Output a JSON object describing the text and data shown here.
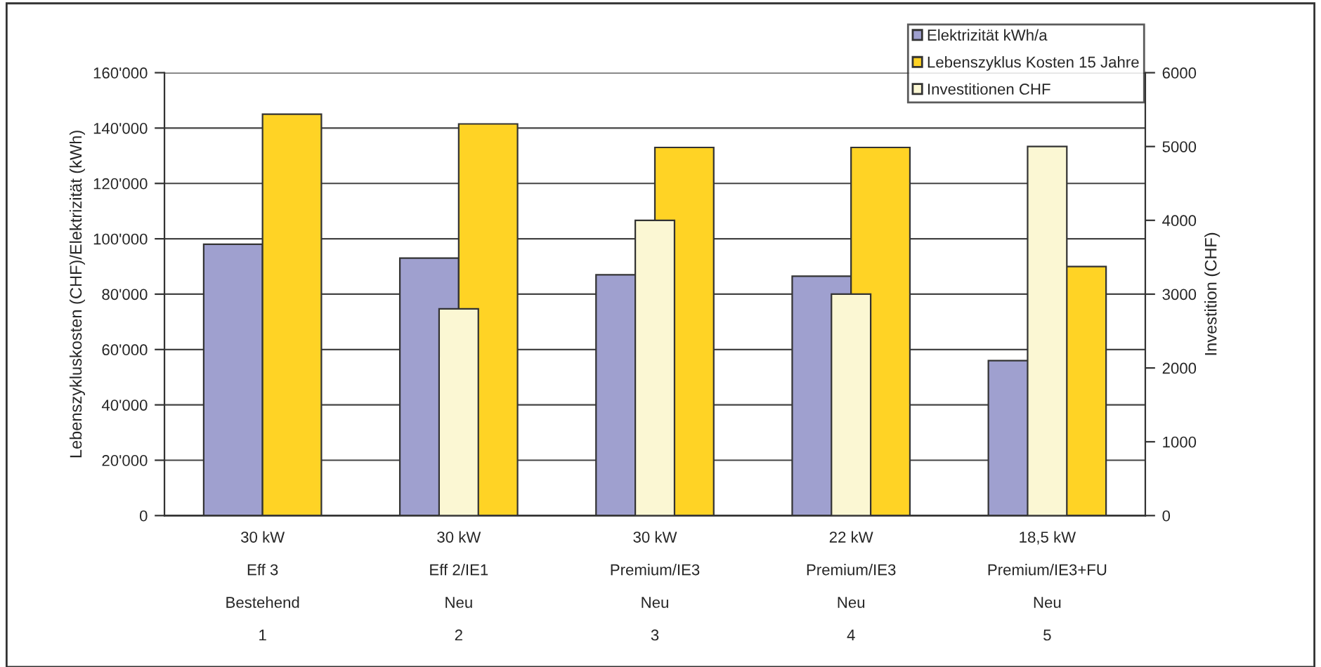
{
  "chart_data": {
    "type": "bar",
    "categories": [
      "30 kW\nEff 3\nBestehend\n1",
      "30 kW\nEff 2/IE1\nNeu\n2",
      "30 kW\nPremium/IE3\nNeu\n3",
      "22 kW\nPremium/IE3\nNeu\n4",
      "18,5 kW\nPremium/IE3+FU\nNeu\n5"
    ],
    "series": [
      {
        "name": "Elektrizität kWh/a",
        "color": "#9fa0cf",
        "values": [
          98000,
          93000,
          87000,
          86500,
          56000
        ]
      },
      {
        "name": "Lebenszyklus Kosten 15 Jahre",
        "color": "#ffd325",
        "values": [
          145000,
          141500,
          133000,
          133000,
          90000
        ]
      },
      {
        "name": "Investitionen CHF",
        "color": "#fbf7d3",
        "axis": "y2",
        "values": [
          null,
          2800,
          4000,
          3000,
          5000
        ]
      }
    ],
    "ylabel": "Lebenszykluskosten (CHF)/Elektrizität (kWh)",
    "y2label": "Investition (CHF)",
    "ylim": [
      0,
      160000
    ],
    "yticks": [
      0,
      {
        "value": 20000,
        "label": "20'000"
      },
      {
        "value": 40000,
        "label": "40'000"
      },
      {
        "value": 60000,
        "label": "60'000"
      },
      {
        "value": 80000,
        "label": "80'000"
      },
      {
        "value": 100000,
        "label": "100'000"
      },
      {
        "value": 120000,
        "label": "120'000"
      },
      {
        "value": 140000,
        "label": "140'000"
      },
      {
        "value": 160000,
        "label": "160'000"
      }
    ],
    "y2lim": [
      0,
      6000
    ],
    "y2ticks": [
      0,
      1000,
      2000,
      3000,
      4000,
      5000,
      6000
    ],
    "grid": "y",
    "legend": "top right"
  }
}
